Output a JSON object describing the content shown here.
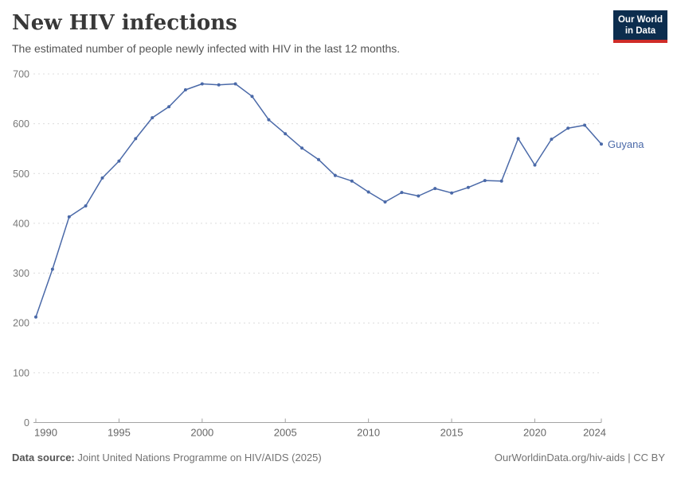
{
  "header": {
    "title": "New HIV infections",
    "subtitle": "The estimated number of people newly infected with HIV in the last 12 months.",
    "logo": {
      "line1": "Our World",
      "line2": "in Data"
    }
  },
  "chart_data": {
    "type": "line",
    "title": "New HIV infections",
    "xlabel": "",
    "ylabel": "",
    "xlim": [
      1990,
      2024
    ],
    "ylim": [
      0,
      700
    ],
    "x_ticks": [
      1990,
      1995,
      2000,
      2005,
      2010,
      2015,
      2020,
      2024
    ],
    "y_ticks": [
      0,
      100,
      200,
      300,
      400,
      500,
      600,
      700
    ],
    "grid": "horizontal-dashed",
    "legend_position": "end-of-line-label",
    "end_label": "Guyana",
    "series": [
      {
        "name": "Guyana",
        "color": "#4a69a8",
        "x": [
          1990,
          1991,
          1992,
          1993,
          1994,
          1995,
          1996,
          1997,
          1998,
          1999,
          2000,
          2001,
          2002,
          2003,
          2004,
          2005,
          2006,
          2007,
          2008,
          2009,
          2010,
          2011,
          2012,
          2013,
          2014,
          2015,
          2016,
          2017,
          2018,
          2019,
          2020,
          2021,
          2022,
          2023,
          2024
        ],
        "values": [
          212,
          308,
          413,
          435,
          491,
          525,
          570,
          612,
          634,
          668,
          680,
          678,
          680,
          655,
          608,
          580,
          551,
          528,
          496,
          485,
          463,
          443,
          462,
          455,
          470,
          461,
          472,
          486,
          485,
          570,
          517,
          569,
          591,
          597,
          559
        ]
      }
    ]
  },
  "footer": {
    "source_label": "Data source:",
    "source_text": " Joint United Nations Programme on HIV/AIDS (2025)",
    "attribution": "OurWorldinData.org/hiv-aids | CC BY"
  },
  "colors": {
    "line": "#4a69a8",
    "grid": "#dcdcdc",
    "axis": "#a3a3a3",
    "y_tick_text": "#787878",
    "x_tick_text": "#666666",
    "title": "#383838",
    "subtitle": "#555555",
    "footer_text": "#737373",
    "logo_bg": "#0c2d4e",
    "logo_stripe": "#cf2c28"
  }
}
